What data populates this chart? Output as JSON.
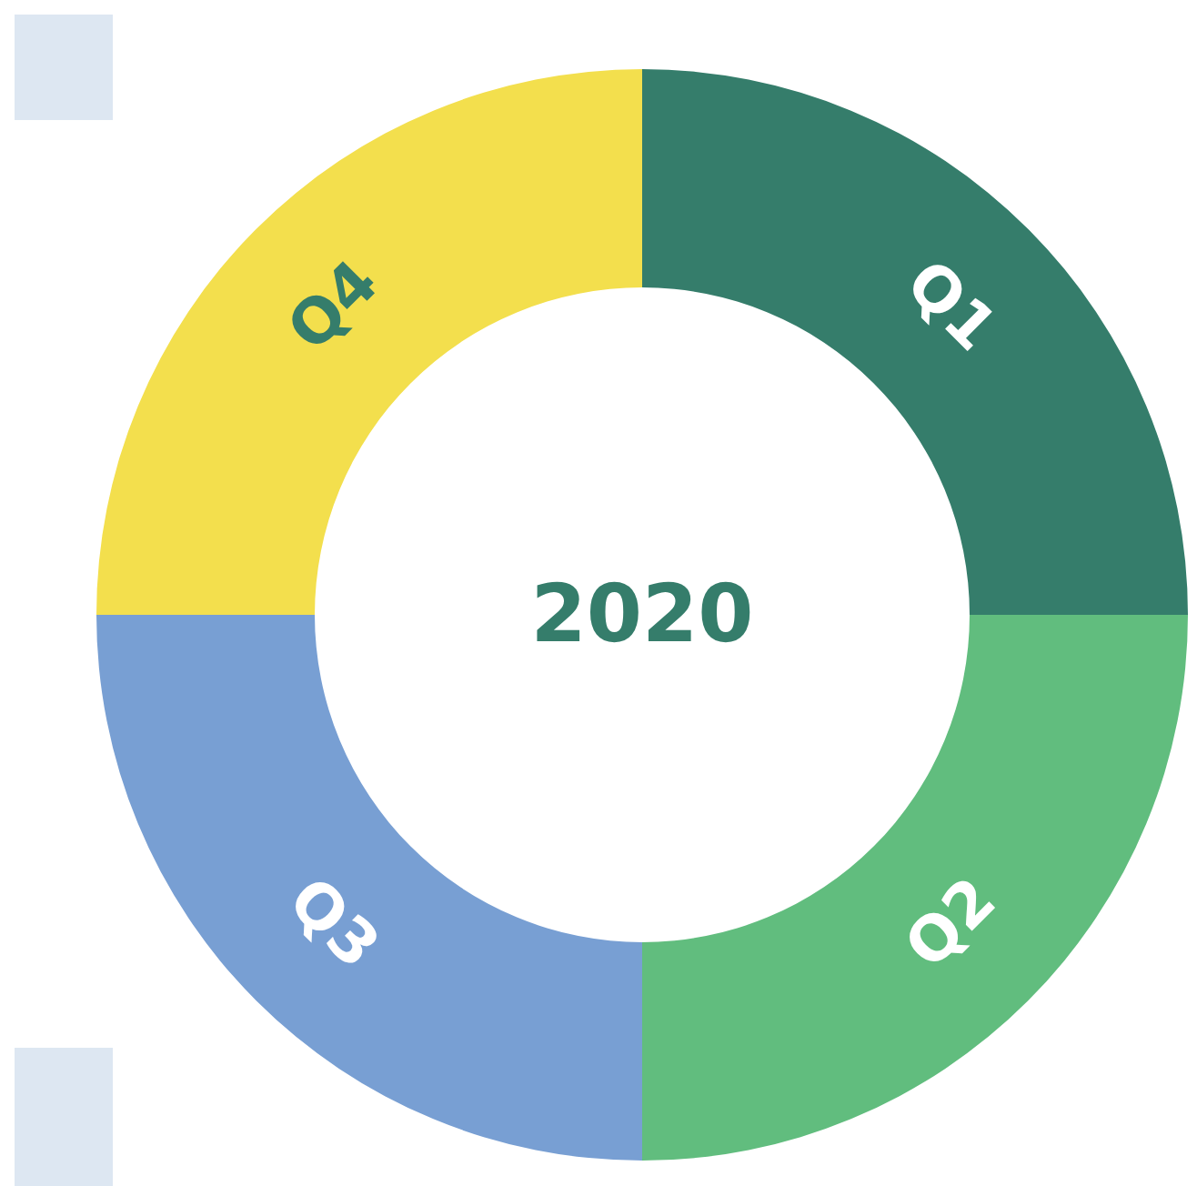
{
  "chart_data": {
    "type": "donut",
    "title": "2020",
    "categories": [
      "Q1",
      "Q2",
      "Q3",
      "Q4"
    ],
    "values": [
      25,
      25,
      25,
      25
    ],
    "colors": [
      "#357d6b",
      "#61bd7e",
      "#789fd3",
      "#f3df4d"
    ]
  }
}
